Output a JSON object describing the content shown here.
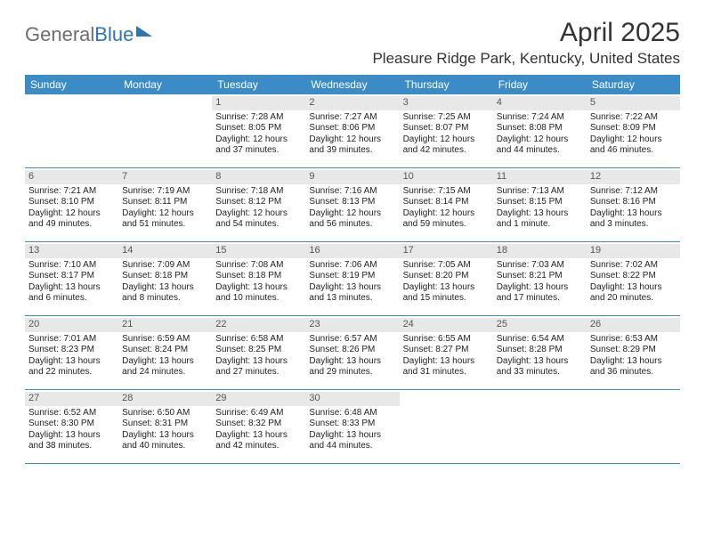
{
  "logo": {
    "part1": "General",
    "part2": "Blue"
  },
  "title": "April 2025",
  "location": "Pleasure Ridge Park, Kentucky, United States",
  "colors": {
    "header_bg": "#3b8bc7",
    "header_text": "#ffffff",
    "daynum_bg": "#e8e8e8",
    "border": "#3b8bc7",
    "logo_gray": "#6d6d6d",
    "logo_blue": "#2e75b6"
  },
  "day_names": [
    "Sunday",
    "Monday",
    "Tuesday",
    "Wednesday",
    "Thursday",
    "Friday",
    "Saturday"
  ],
  "weeks": [
    [
      null,
      null,
      {
        "n": "1",
        "r": "Sunrise: 7:28 AM",
        "s": "Sunset: 8:05 PM",
        "d1": "Daylight: 12 hours",
        "d2": "and 37 minutes."
      },
      {
        "n": "2",
        "r": "Sunrise: 7:27 AM",
        "s": "Sunset: 8:06 PM",
        "d1": "Daylight: 12 hours",
        "d2": "and 39 minutes."
      },
      {
        "n": "3",
        "r": "Sunrise: 7:25 AM",
        "s": "Sunset: 8:07 PM",
        "d1": "Daylight: 12 hours",
        "d2": "and 42 minutes."
      },
      {
        "n": "4",
        "r": "Sunrise: 7:24 AM",
        "s": "Sunset: 8:08 PM",
        "d1": "Daylight: 12 hours",
        "d2": "and 44 minutes."
      },
      {
        "n": "5",
        "r": "Sunrise: 7:22 AM",
        "s": "Sunset: 8:09 PM",
        "d1": "Daylight: 12 hours",
        "d2": "and 46 minutes."
      }
    ],
    [
      {
        "n": "6",
        "r": "Sunrise: 7:21 AM",
        "s": "Sunset: 8:10 PM",
        "d1": "Daylight: 12 hours",
        "d2": "and 49 minutes."
      },
      {
        "n": "7",
        "r": "Sunrise: 7:19 AM",
        "s": "Sunset: 8:11 PM",
        "d1": "Daylight: 12 hours",
        "d2": "and 51 minutes."
      },
      {
        "n": "8",
        "r": "Sunrise: 7:18 AM",
        "s": "Sunset: 8:12 PM",
        "d1": "Daylight: 12 hours",
        "d2": "and 54 minutes."
      },
      {
        "n": "9",
        "r": "Sunrise: 7:16 AM",
        "s": "Sunset: 8:13 PM",
        "d1": "Daylight: 12 hours",
        "d2": "and 56 minutes."
      },
      {
        "n": "10",
        "r": "Sunrise: 7:15 AM",
        "s": "Sunset: 8:14 PM",
        "d1": "Daylight: 12 hours",
        "d2": "and 59 minutes."
      },
      {
        "n": "11",
        "r": "Sunrise: 7:13 AM",
        "s": "Sunset: 8:15 PM",
        "d1": "Daylight: 13 hours",
        "d2": "and 1 minute."
      },
      {
        "n": "12",
        "r": "Sunrise: 7:12 AM",
        "s": "Sunset: 8:16 PM",
        "d1": "Daylight: 13 hours",
        "d2": "and 3 minutes."
      }
    ],
    [
      {
        "n": "13",
        "r": "Sunrise: 7:10 AM",
        "s": "Sunset: 8:17 PM",
        "d1": "Daylight: 13 hours",
        "d2": "and 6 minutes."
      },
      {
        "n": "14",
        "r": "Sunrise: 7:09 AM",
        "s": "Sunset: 8:18 PM",
        "d1": "Daylight: 13 hours",
        "d2": "and 8 minutes."
      },
      {
        "n": "15",
        "r": "Sunrise: 7:08 AM",
        "s": "Sunset: 8:18 PM",
        "d1": "Daylight: 13 hours",
        "d2": "and 10 minutes."
      },
      {
        "n": "16",
        "r": "Sunrise: 7:06 AM",
        "s": "Sunset: 8:19 PM",
        "d1": "Daylight: 13 hours",
        "d2": "and 13 minutes."
      },
      {
        "n": "17",
        "r": "Sunrise: 7:05 AM",
        "s": "Sunset: 8:20 PM",
        "d1": "Daylight: 13 hours",
        "d2": "and 15 minutes."
      },
      {
        "n": "18",
        "r": "Sunrise: 7:03 AM",
        "s": "Sunset: 8:21 PM",
        "d1": "Daylight: 13 hours",
        "d2": "and 17 minutes."
      },
      {
        "n": "19",
        "r": "Sunrise: 7:02 AM",
        "s": "Sunset: 8:22 PM",
        "d1": "Daylight: 13 hours",
        "d2": "and 20 minutes."
      }
    ],
    [
      {
        "n": "20",
        "r": "Sunrise: 7:01 AM",
        "s": "Sunset: 8:23 PM",
        "d1": "Daylight: 13 hours",
        "d2": "and 22 minutes."
      },
      {
        "n": "21",
        "r": "Sunrise: 6:59 AM",
        "s": "Sunset: 8:24 PM",
        "d1": "Daylight: 13 hours",
        "d2": "and 24 minutes."
      },
      {
        "n": "22",
        "r": "Sunrise: 6:58 AM",
        "s": "Sunset: 8:25 PM",
        "d1": "Daylight: 13 hours",
        "d2": "and 27 minutes."
      },
      {
        "n": "23",
        "r": "Sunrise: 6:57 AM",
        "s": "Sunset: 8:26 PM",
        "d1": "Daylight: 13 hours",
        "d2": "and 29 minutes."
      },
      {
        "n": "24",
        "r": "Sunrise: 6:55 AM",
        "s": "Sunset: 8:27 PM",
        "d1": "Daylight: 13 hours",
        "d2": "and 31 minutes."
      },
      {
        "n": "25",
        "r": "Sunrise: 6:54 AM",
        "s": "Sunset: 8:28 PM",
        "d1": "Daylight: 13 hours",
        "d2": "and 33 minutes."
      },
      {
        "n": "26",
        "r": "Sunrise: 6:53 AM",
        "s": "Sunset: 8:29 PM",
        "d1": "Daylight: 13 hours",
        "d2": "and 36 minutes."
      }
    ],
    [
      {
        "n": "27",
        "r": "Sunrise: 6:52 AM",
        "s": "Sunset: 8:30 PM",
        "d1": "Daylight: 13 hours",
        "d2": "and 38 minutes."
      },
      {
        "n": "28",
        "r": "Sunrise: 6:50 AM",
        "s": "Sunset: 8:31 PM",
        "d1": "Daylight: 13 hours",
        "d2": "and 40 minutes."
      },
      {
        "n": "29",
        "r": "Sunrise: 6:49 AM",
        "s": "Sunset: 8:32 PM",
        "d1": "Daylight: 13 hours",
        "d2": "and 42 minutes."
      },
      {
        "n": "30",
        "r": "Sunrise: 6:48 AM",
        "s": "Sunset: 8:33 PM",
        "d1": "Daylight: 13 hours",
        "d2": "and 44 minutes."
      },
      null,
      null,
      null
    ]
  ]
}
